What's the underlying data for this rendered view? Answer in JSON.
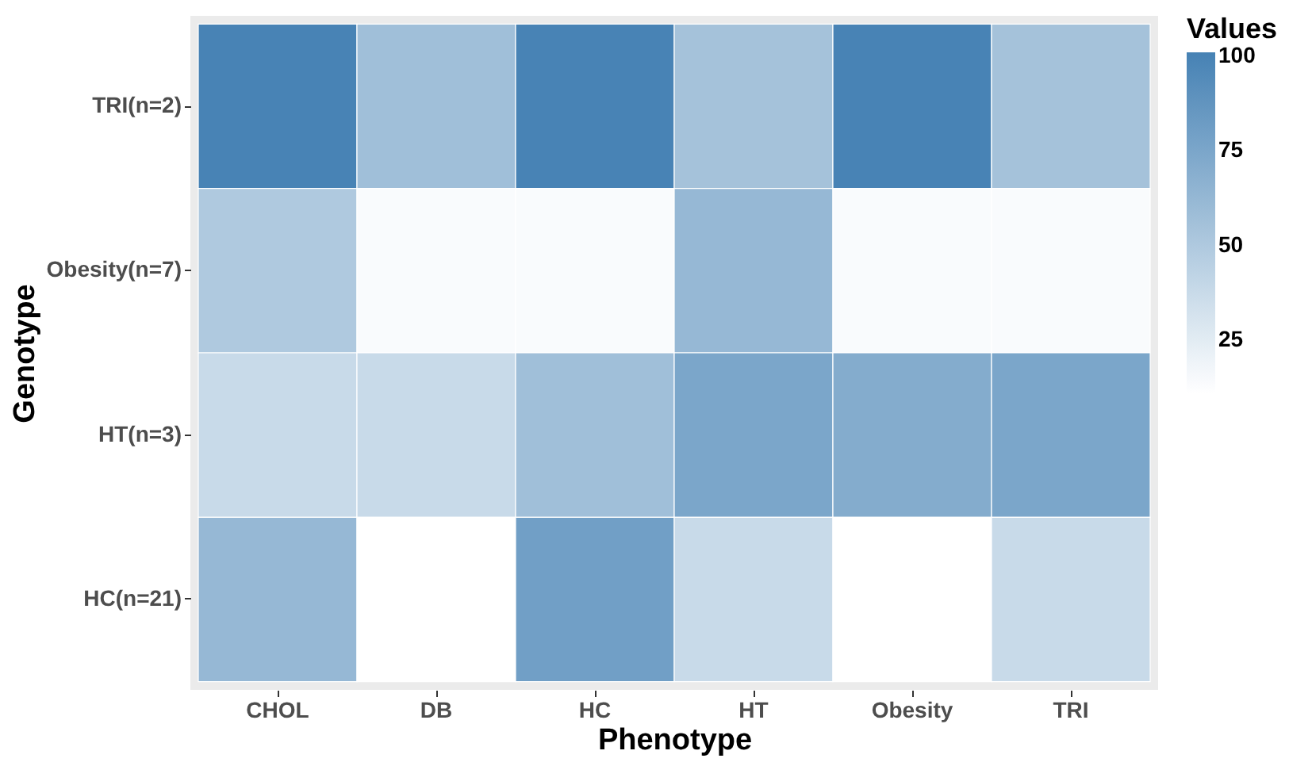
{
  "chart_data": {
    "type": "heatmap",
    "xlabel": "Phenotype",
    "ylabel": "Genotype",
    "legend_title": "Values",
    "categories": [
      "CHOL",
      "DB",
      "HC",
      "HT",
      "Obesity",
      "TRI"
    ],
    "y_categories": [
      "TRI(n=2)",
      "Obesity(n=7)",
      "HT(n=3)",
      "HC(n=21)"
    ],
    "cells": [
      [
        100,
        57,
        100,
        55,
        100,
        55
      ],
      [
        50,
        14,
        14,
        62,
        14,
        14
      ],
      [
        38,
        38,
        57,
        75,
        71,
        75
      ],
      [
        62,
        11,
        80,
        38,
        11,
        38
      ]
    ],
    "clim": [
      11,
      101
    ],
    "cticks": [
      25,
      50,
      75,
      100
    ],
    "colors": [
      "#ffffff",
      "#4682b4"
    ]
  }
}
